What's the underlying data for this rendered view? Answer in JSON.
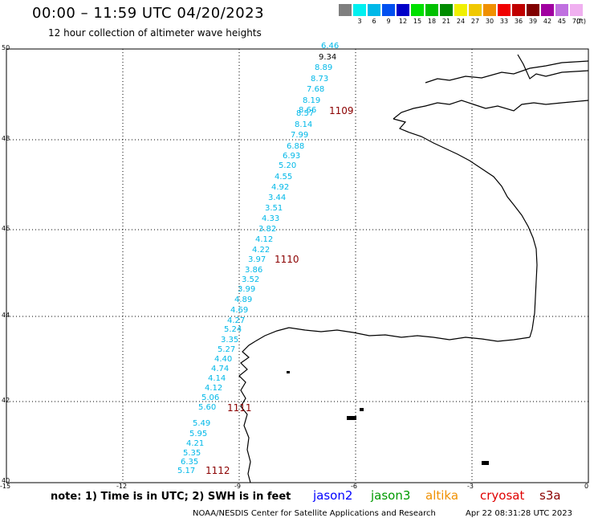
{
  "title": "00:00 – 11:59 UTC 04/20/2023",
  "subtitle": "12 hour collection of altimeter wave heights",
  "legend": {
    "unit": "(ft)",
    "bins": [
      {
        "label": "",
        "color": "#7f7f7f"
      },
      {
        "label": "3",
        "color": "#00f0f0"
      },
      {
        "label": "6",
        "color": "#00b8e8"
      },
      {
        "label": "9",
        "color": "#0050f0"
      },
      {
        "label": "12",
        "color": "#0000c8"
      },
      {
        "label": "15",
        "color": "#00e000"
      },
      {
        "label": "18",
        "color": "#00c000"
      },
      {
        "label": "21",
        "color": "#008c00"
      },
      {
        "label": "24",
        "color": "#f0f000"
      },
      {
        "label": "27",
        "color": "#f0c800"
      },
      {
        "label": "30",
        "color": "#f09000"
      },
      {
        "label": "33",
        "color": "#f00000"
      },
      {
        "label": "36",
        "color": "#c00000"
      },
      {
        "label": "39",
        "color": "#800000"
      },
      {
        "label": "42",
        "color": "#a000a0"
      },
      {
        "label": "45",
        "color": "#c070e0"
      },
      {
        "label": "70",
        "color": "#f0b0f0"
      }
    ]
  },
  "axes": {
    "latitudes": [
      "50",
      "48",
      "46",
      "44",
      "42",
      "40"
    ],
    "longitudes": [
      "-15",
      "-12",
      "-9",
      "-6",
      "-3",
      "0"
    ]
  },
  "wave_heights": [
    "6.46",
    "9.34",
    "8.89",
    "8.73",
    "7.68",
    "8.19",
    "8.66",
    "8.57",
    "8.14",
    "7.99",
    "6.88",
    "6.93",
    "5.20",
    "4.55",
    "4.92",
    "3.44",
    "3.51",
    "4.33",
    "3.82",
    "4.12",
    "4.22",
    "3.97",
    "3.86",
    "3.52",
    "3.99",
    "4.89",
    "4.69",
    "4.27",
    "5.24",
    "3.35",
    "5.27",
    "4.40",
    "4.74",
    "4.14",
    "4.12",
    "5.06",
    "5.60",
    "5.49",
    "5.95",
    "4.21",
    "5.35",
    "6.35",
    "5.17"
  ],
  "revolutions": [
    "1109",
    "1110",
    "1111",
    "1112"
  ],
  "note": "note: 1) Time is in UTC; 2) SWH is in feet",
  "satellites": [
    {
      "name": "jason2",
      "color": "#0000ff"
    },
    {
      "name": "jason3",
      "color": "#009a00"
    },
    {
      "name": "altika",
      "color": "#f09000"
    },
    {
      "name": "cryosat",
      "color": "#e00000"
    },
    {
      "name": "s3a",
      "color": "#8b0000"
    }
  ],
  "credit": "NOAA/NESDIS Center for Satellite Applications and Research",
  "stamp": "Apr 22 08:31:28 UTC 2023"
}
